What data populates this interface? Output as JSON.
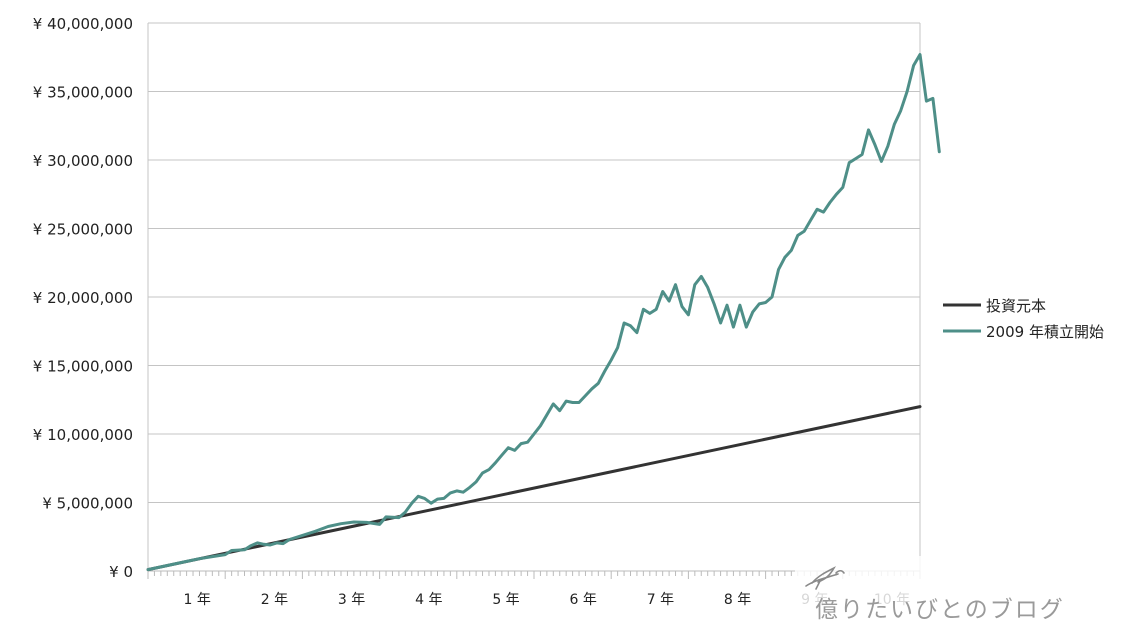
{
  "chart_data": {
    "type": "line",
    "title": "",
    "xlabel": "",
    "ylabel": "",
    "ylim": [
      0,
      40000000
    ],
    "y_ticks": [
      0,
      5000000,
      10000000,
      15000000,
      20000000,
      25000000,
      30000000,
      35000000,
      40000000
    ],
    "y_tick_labels": [
      "¥ 0",
      "¥ 5,000,000",
      "¥ 10,000,000",
      "¥ 15,000,000",
      "¥ 20,000,000",
      "¥ 25,000,000",
      "¥ 30,000,000",
      "¥ 35,000,000",
      "¥ 40,000,000"
    ],
    "x_tick_labels": [
      "1 年",
      "2 年",
      "3 年",
      "4 年",
      "5 年",
      "6 年",
      "7 年",
      "8 年",
      "9 年",
      "10 年"
    ],
    "x_months": 120,
    "grid": true,
    "legend_position": "right",
    "series": [
      {
        "name": "投資元本",
        "color": "#333333",
        "points": [
          [
            0,
            100000
          ],
          [
            120,
            12000000
          ]
        ]
      },
      {
        "name": "2009 年積立開始",
        "color": "#4e8f88",
        "points": [
          [
            0,
            100000
          ],
          [
            3,
            400000
          ],
          [
            6,
            700000
          ],
          [
            8,
            900000
          ],
          [
            10,
            1050000
          ],
          [
            12,
            1200000
          ],
          [
            13,
            1500000
          ],
          [
            15,
            1550000
          ],
          [
            16,
            1850000
          ],
          [
            17,
            2050000
          ],
          [
            18,
            1950000
          ],
          [
            19,
            1900000
          ],
          [
            20,
            2050000
          ],
          [
            21,
            2000000
          ],
          [
            22,
            2300000
          ],
          [
            24,
            2600000
          ],
          [
            26,
            2900000
          ],
          [
            28,
            3250000
          ],
          [
            30,
            3450000
          ],
          [
            32,
            3580000
          ],
          [
            34,
            3550000
          ],
          [
            36,
            3400000
          ],
          [
            37,
            3950000
          ],
          [
            39,
            3900000
          ],
          [
            40,
            4300000
          ],
          [
            41,
            4950000
          ],
          [
            42,
            5450000
          ],
          [
            43,
            5300000
          ],
          [
            44,
            4950000
          ],
          [
            45,
            5250000
          ],
          [
            46,
            5300000
          ],
          [
            47,
            5700000
          ],
          [
            48,
            5850000
          ],
          [
            49,
            5750000
          ],
          [
            50,
            6100000
          ],
          [
            51,
            6500000
          ],
          [
            52,
            7150000
          ],
          [
            53,
            7400000
          ],
          [
            54,
            7900000
          ],
          [
            55,
            8450000
          ],
          [
            56,
            9000000
          ],
          [
            57,
            8800000
          ],
          [
            58,
            9300000
          ],
          [
            59,
            9400000
          ],
          [
            60,
            10000000
          ],
          [
            61,
            10600000
          ],
          [
            62,
            11400000
          ],
          [
            63,
            12200000
          ],
          [
            64,
            11700000
          ],
          [
            65,
            12400000
          ],
          [
            66,
            12300000
          ],
          [
            67,
            12300000
          ],
          [
            68,
            12800000
          ],
          [
            69,
            13300000
          ],
          [
            70,
            13700000
          ],
          [
            71,
            14600000
          ],
          [
            72,
            15400000
          ],
          [
            73,
            16300000
          ],
          [
            74,
            18100000
          ],
          [
            75,
            17900000
          ],
          [
            76,
            17400000
          ],
          [
            77,
            19100000
          ],
          [
            78,
            18800000
          ],
          [
            79,
            19100000
          ],
          [
            80,
            20400000
          ],
          [
            81,
            19700000
          ],
          [
            82,
            20900000
          ],
          [
            83,
            19300000
          ],
          [
            84,
            18700000
          ],
          [
            85,
            20900000
          ],
          [
            86,
            21500000
          ],
          [
            87,
            20700000
          ],
          [
            88,
            19500000
          ],
          [
            89,
            18100000
          ],
          [
            90,
            19400000
          ],
          [
            91,
            17800000
          ],
          [
            92,
            19400000
          ],
          [
            93,
            17800000
          ],
          [
            94,
            18900000
          ],
          [
            95,
            19500000
          ],
          [
            96,
            19600000
          ],
          [
            97,
            20000000
          ],
          [
            98,
            22000000
          ],
          [
            99,
            22900000
          ],
          [
            100,
            23400000
          ],
          [
            101,
            24500000
          ],
          [
            102,
            24800000
          ],
          [
            103,
            25600000
          ],
          [
            104,
            26400000
          ],
          [
            105,
            26200000
          ],
          [
            106,
            26900000
          ],
          [
            107,
            27500000
          ],
          [
            108,
            28000000
          ],
          [
            109,
            29800000
          ],
          [
            110,
            30100000
          ],
          [
            111,
            30400000
          ],
          [
            112,
            32200000
          ],
          [
            113,
            31100000
          ],
          [
            114,
            29900000
          ],
          [
            115,
            31000000
          ],
          [
            116,
            32600000
          ],
          [
            117,
            33600000
          ],
          [
            118,
            35000000
          ],
          [
            119,
            36900000
          ],
          [
            120,
            37700000
          ],
          [
            121,
            34300000
          ],
          [
            122,
            34500000
          ],
          [
            123,
            30600000
          ]
        ]
      }
    ]
  },
  "legend": {
    "item_1": "投資元本",
    "item_2": "2009 年積立開始"
  },
  "watermark": {
    "text": "億りたいびとのブログ"
  }
}
